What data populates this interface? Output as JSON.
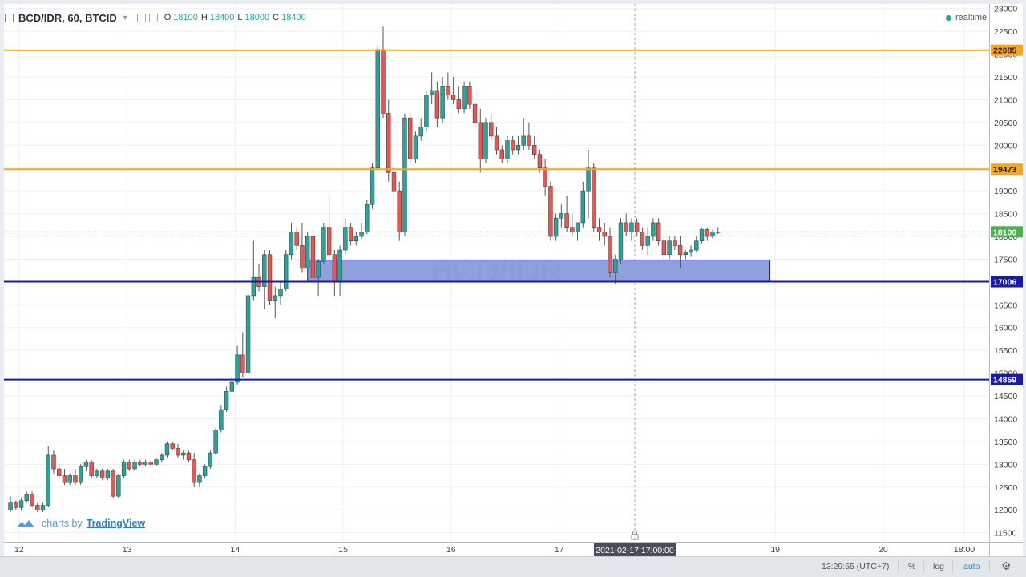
{
  "header": {
    "symbol": "BCD/IDR, 60, BTCID",
    "o_label": "O",
    "o_value": "18100",
    "h_label": "H",
    "h_value": "18400",
    "l_label": "L",
    "l_value": "18000",
    "c_label": "C",
    "c_value": "18400",
    "realtime": "realtime"
  },
  "watermark": "BCD/IDR",
  "branding": {
    "prefix": "charts by",
    "name": "TradingView"
  },
  "bottom_bar": {
    "time": "13:29:55 (UTC+7)",
    "percent": "%",
    "log": "log",
    "auto": "auto"
  },
  "colors": {
    "up": "#26a69a",
    "down": "#ef5350",
    "resistance": "#f5a623",
    "support": "#1a1aa8",
    "zone": "#7b8fd6",
    "last_price": "#4caf50"
  },
  "chart_data": {
    "type": "candlestick",
    "ylim": [
      11300,
      23100
    ],
    "y_ticks": [
      11500,
      12000,
      12500,
      13000,
      13500,
      14000,
      14500,
      15000,
      15500,
      16000,
      16500,
      17000,
      17500,
      18000,
      18500,
      19000,
      19500,
      20000,
      20500,
      21000,
      21500,
      22000,
      22500,
      23000
    ],
    "x_ticks": [
      {
        "label": "12",
        "x": 12.0
      },
      {
        "label": "13",
        "x": 13.0
      },
      {
        "label": "14",
        "x": 14.0
      },
      {
        "label": "15",
        "x": 15.0
      },
      {
        "label": "16",
        "x": 16.0
      },
      {
        "label": "17",
        "x": 17.0
      },
      {
        "label": "19",
        "x": 19.0
      },
      {
        "label": "20",
        "x": 20.0
      },
      {
        "label": "18:00",
        "x": 20.75
      }
    ],
    "crosshair": {
      "label": "2021-02-17 17:00:00",
      "x": 17.7
    },
    "horizontal_lines": [
      {
        "label": "22085",
        "value": 22085,
        "color": "#f5a623"
      },
      {
        "label": "19473",
        "value": 19473,
        "color": "#f5a623"
      },
      {
        "label": "17006",
        "value": 17006,
        "color": "#1a1aa8"
      },
      {
        "label": "14859",
        "value": 14859,
        "color": "#1a1aa8"
      }
    ],
    "last_price": {
      "label": "18100",
      "value": 18100
    },
    "zone": {
      "x_start": 14.67,
      "x_end": 18.95,
      "y_low": 17006,
      "y_high": 17480
    },
    "candles": [
      [
        11.92,
        12000,
        12300,
        11950,
        12150
      ],
      [
        11.97,
        12150,
        12200,
        12000,
        12050
      ],
      [
        12.02,
        12050,
        12250,
        12000,
        12200
      ],
      [
        12.07,
        12200,
        12400,
        12150,
        12350
      ],
      [
        12.12,
        12350,
        12400,
        12050,
        12100
      ],
      [
        12.17,
        12100,
        12150,
        11950,
        12000
      ],
      [
        12.22,
        12000,
        12150,
        11950,
        12100
      ],
      [
        12.27,
        12100,
        13400,
        12050,
        13200
      ],
      [
        12.32,
        13200,
        13300,
        12800,
        12900
      ],
      [
        12.37,
        12900,
        13000,
        12700,
        12750
      ],
      [
        12.42,
        12750,
        12900,
        12550,
        12600
      ],
      [
        12.47,
        12600,
        12800,
        12550,
        12750
      ],
      [
        12.52,
        12750,
        12900,
        12550,
        12600
      ],
      [
        12.57,
        12600,
        13000,
        12550,
        12950
      ],
      [
        12.62,
        12950,
        13100,
        12850,
        13050
      ],
      [
        12.67,
        13050,
        13100,
        12700,
        12750
      ],
      [
        12.72,
        12750,
        12900,
        12700,
        12850
      ],
      [
        12.77,
        12850,
        12900,
        12650,
        12700
      ],
      [
        12.82,
        12700,
        12900,
        12650,
        12850
      ],
      [
        12.87,
        12850,
        12900,
        12250,
        12300
      ],
      [
        12.92,
        12300,
        12800,
        12250,
        12750
      ],
      [
        12.97,
        12750,
        13100,
        12700,
        13050
      ],
      [
        13.02,
        13050,
        13100,
        12850,
        12900
      ],
      [
        13.07,
        12900,
        13100,
        12850,
        13050
      ],
      [
        13.12,
        13050,
        13100,
        12950,
        13000
      ],
      [
        13.17,
        13000,
        13100,
        12950,
        13050
      ],
      [
        13.22,
        13050,
        13100,
        12950,
        13000
      ],
      [
        13.27,
        13000,
        13150,
        12950,
        13100
      ],
      [
        13.32,
        13100,
        13250,
        13050,
        13200
      ],
      [
        13.37,
        13200,
        13500,
        13150,
        13450
      ],
      [
        13.42,
        13450,
        13500,
        13300,
        13350
      ],
      [
        13.47,
        13350,
        13450,
        13150,
        13200
      ],
      [
        13.52,
        13200,
        13300,
        13100,
        13250
      ],
      [
        13.57,
        13250,
        13300,
        13050,
        13100
      ],
      [
        13.62,
        13100,
        13250,
        12500,
        12600
      ],
      [
        13.67,
        12600,
        12800,
        12500,
        12750
      ],
      [
        13.72,
        12750,
        13000,
        12700,
        12950
      ],
      [
        13.77,
        12950,
        13300,
        12900,
        13250
      ],
      [
        13.82,
        13250,
        13800,
        13200,
        13750
      ],
      [
        13.87,
        13750,
        14300,
        13700,
        14200
      ],
      [
        13.92,
        14200,
        14700,
        14150,
        14600
      ],
      [
        13.97,
        14600,
        14900,
        14550,
        14800
      ],
      [
        14.02,
        14800,
        15600,
        14750,
        15400
      ],
      [
        14.07,
        15400,
        15900,
        14900,
        15000
      ],
      [
        14.12,
        15000,
        16800,
        14950,
        16700
      ],
      [
        14.17,
        16700,
        17900,
        16600,
        17100
      ],
      [
        14.22,
        17100,
        17400,
        16800,
        16900
      ],
      [
        14.27,
        16900,
        17700,
        16400,
        17600
      ],
      [
        14.32,
        17600,
        17700,
        16500,
        16600
      ],
      [
        14.37,
        16600,
        16900,
        16200,
        16700
      ],
      [
        14.42,
        16700,
        17000,
        16500,
        16850
      ],
      [
        14.47,
        16850,
        17700,
        16800,
        17600
      ],
      [
        14.52,
        17600,
        18300,
        17500,
        18100
      ],
      [
        14.57,
        18100,
        18200,
        17700,
        17800
      ],
      [
        14.62,
        17800,
        18300,
        17200,
        17300
      ],
      [
        14.67,
        17300,
        18100,
        17000,
        18000
      ],
      [
        14.72,
        18000,
        18200,
        17000,
        17100
      ],
      [
        14.77,
        17100,
        17500,
        16700,
        17450
      ],
      [
        14.82,
        17450,
        18300,
        17400,
        18200
      ],
      [
        14.87,
        18200,
        18900,
        17500,
        17600
      ],
      [
        14.92,
        17600,
        17700,
        16700,
        17000
      ],
      [
        14.97,
        17000,
        17800,
        16700,
        17700
      ],
      [
        15.02,
        17700,
        18400,
        17600,
        18200
      ],
      [
        15.07,
        18200,
        18300,
        17800,
        17900
      ],
      [
        15.12,
        17900,
        18100,
        17800,
        18000
      ],
      [
        15.17,
        18000,
        18300,
        17950,
        18100
      ],
      [
        15.22,
        18100,
        18800,
        18050,
        18700
      ],
      [
        15.27,
        18700,
        19600,
        18600,
        19500
      ],
      [
        15.32,
        19500,
        22200,
        19400,
        22100
      ],
      [
        15.37,
        22100,
        22600,
        20600,
        20700
      ],
      [
        15.42,
        20700,
        21000,
        19200,
        19400
      ],
      [
        15.47,
        19400,
        19700,
        18800,
        19000
      ],
      [
        15.52,
        19000,
        19200,
        17900,
        18100
      ],
      [
        15.57,
        18100,
        20700,
        18000,
        20600
      ],
      [
        15.62,
        20600,
        20700,
        19600,
        19700
      ],
      [
        15.67,
        19700,
        20300,
        19600,
        20200
      ],
      [
        15.72,
        20200,
        20600,
        20100,
        20400
      ],
      [
        15.77,
        20400,
        21200,
        20300,
        21100
      ],
      [
        15.82,
        21100,
        21600,
        20900,
        21200
      ],
      [
        15.87,
        21200,
        21400,
        20400,
        20600
      ],
      [
        15.92,
        20600,
        21500,
        20500,
        21300
      ],
      [
        15.97,
        21300,
        21600,
        21000,
        21100
      ],
      [
        16.02,
        21100,
        21500,
        20900,
        21000
      ],
      [
        16.07,
        21000,
        21300,
        20700,
        20800
      ],
      [
        16.12,
        20800,
        21400,
        20700,
        21300
      ],
      [
        16.17,
        21300,
        21400,
        20800,
        20900
      ],
      [
        16.22,
        20900,
        21200,
        20300,
        20500
      ],
      [
        16.27,
        20500,
        20800,
        19400,
        19700
      ],
      [
        16.32,
        19700,
        20600,
        19600,
        20500
      ],
      [
        16.37,
        20500,
        20700,
        20100,
        20200
      ],
      [
        16.42,
        20200,
        20400,
        19800,
        19900
      ],
      [
        16.47,
        19900,
        20000,
        19600,
        19700
      ],
      [
        16.52,
        19700,
        20200,
        19600,
        20100
      ],
      [
        16.57,
        20100,
        20200,
        19800,
        19900
      ],
      [
        16.62,
        19900,
        20200,
        19800,
        20000
      ],
      [
        16.67,
        20000,
        20600,
        19900,
        20200
      ],
      [
        16.72,
        20200,
        20500,
        19900,
        20000
      ],
      [
        16.77,
        20000,
        20200,
        19700,
        19800
      ],
      [
        16.82,
        19800,
        19900,
        19400,
        19500
      ],
      [
        16.87,
        19500,
        19700,
        18900,
        19100
      ],
      [
        16.92,
        19100,
        19200,
        17900,
        18000
      ],
      [
        16.97,
        18000,
        18500,
        17900,
        18400
      ],
      [
        17.02,
        18400,
        18700,
        18200,
        18500
      ],
      [
        17.07,
        18500,
        18900,
        18100,
        18200
      ],
      [
        17.12,
        18200,
        18500,
        18000,
        18100
      ],
      [
        17.17,
        18100,
        18300,
        17900,
        18300
      ],
      [
        17.22,
        18300,
        19200,
        18200,
        19000
      ],
      [
        17.27,
        19000,
        19900,
        18400,
        19500
      ],
      [
        17.32,
        19500,
        19600,
        18100,
        18200
      ],
      [
        17.37,
        18200,
        18400,
        17900,
        18100
      ],
      [
        17.42,
        18100,
        18300,
        17800,
        18000
      ],
      [
        17.47,
        18000,
        18200,
        17100,
        17200
      ],
      [
        17.52,
        17200,
        17600,
        16950,
        17500
      ],
      [
        17.57,
        17500,
        18400,
        17400,
        18300
      ],
      [
        17.62,
        18300,
        18500,
        18000,
        18100
      ],
      [
        17.67,
        18100,
        18400,
        17900,
        18300
      ],
      [
        17.72,
        18300,
        18400,
        18000,
        18100
      ],
      [
        17.77,
        18100,
        18200,
        17700,
        17800
      ],
      [
        17.82,
        17800,
        18200,
        17600,
        18000
      ],
      [
        17.87,
        18000,
        18400,
        17900,
        18300
      ],
      [
        17.92,
        18300,
        18400,
        17800,
        17900
      ],
      [
        17.97,
        17900,
        18000,
        17500,
        17600
      ],
      [
        18.02,
        17600,
        18000,
        17500,
        17900
      ],
      [
        18.07,
        17900,
        18000,
        17700,
        17800
      ],
      [
        18.12,
        17800,
        18000,
        17300,
        17600
      ],
      [
        18.17,
        17600,
        17700,
        17500,
        17650
      ],
      [
        18.22,
        17650,
        17800,
        17550,
        17700
      ],
      [
        18.27,
        17700,
        18000,
        17650,
        17900
      ],
      [
        18.32,
        17900,
        18200,
        17850,
        18150
      ],
      [
        18.37,
        18150,
        18200,
        17900,
        18000
      ],
      [
        18.42,
        18000,
        18150,
        17950,
        18100
      ],
      [
        18.47,
        18100,
        18200,
        18050,
        18100
      ]
    ]
  }
}
